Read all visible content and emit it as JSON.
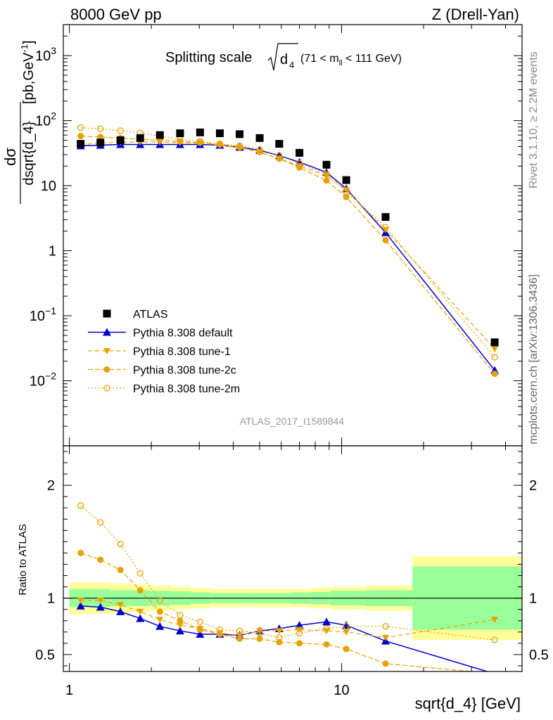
{
  "header": {
    "left": "8000 GeV pp",
    "right": "Z (Drell-Yan)"
  },
  "side_labels": {
    "rivet": "Rivet 3.1.10, ≥ 2.2M events",
    "mcplots": "mcplots.cern.ch [arXiv:1306.3436]"
  },
  "watermark": "ATLAS_2017_I1589844",
  "colors": {
    "atlas": "#000000",
    "default": "#0000cc",
    "tunes": "#e8a100",
    "band_inner": "#99ff99",
    "band_outer": "#ffff99"
  },
  "chart_data": [
    {
      "type": "scatter",
      "panel": "main",
      "title": "Splitting scale",
      "title_symbol": "√d",
      "title_symbol_sub": "4",
      "title_range_prefix": "(71 < m",
      "title_range_sub": "ll",
      "title_range_suffix": " < 111 GeV)",
      "ylabel_top": "dσ",
      "ylabel_bottom": "dsqrt{d_4}",
      "ylabel_unit": "[pb,GeV",
      "ylabel_unit_sup": "-1",
      "ylabel_unit_close": "]",
      "xlabel": "sqrt{d_4} [GeV]",
      "xscale": "log",
      "yscale": "log",
      "xlim": [
        0.95,
        46
      ],
      "ylim": [
        0.001,
        3000
      ],
      "y_ticks": [
        {
          "base": "10",
          "exp": "3",
          "value": 1000
        },
        {
          "base": "10",
          "exp": "2",
          "value": 100
        },
        {
          "base": "10",
          "exp": "",
          "value": 10
        },
        {
          "base": "1",
          "exp": "",
          "value": 1
        },
        {
          "base": "10",
          "exp": "−1",
          "value": 0.1
        },
        {
          "base": "10",
          "exp": "−2",
          "value": 0.01
        }
      ],
      "x_ticks": [
        {
          "label": "1",
          "value": 1
        },
        {
          "label": "10",
          "value": 10
        }
      ],
      "x": [
        1.1,
        1.3,
        1.54,
        1.82,
        2.15,
        2.55,
        3.02,
        3.57,
        4.22,
        5.0,
        5.9,
        7.0,
        8.8,
        10.4,
        14.5,
        36.5
      ],
      "series": [
        {
          "name": "ATLAS",
          "style": "atlas",
          "values": [
            44,
            46,
            50,
            54,
            60,
            64,
            66,
            64,
            62,
            54,
            44,
            32,
            21,
            12.2,
            3.3,
            0.039
          ]
        },
        {
          "name": "Pythia 8.308 default",
          "style": "default",
          "values": [
            41,
            42,
            43,
            43,
            43,
            43,
            43,
            42,
            39,
            35,
            29,
            23,
            16,
            9.0,
            1.9,
            0.0145
          ]
        },
        {
          "name": "Pythia 8.308 tune-1",
          "style": "tune1",
          "values": [
            43,
            45,
            47,
            47,
            47,
            46,
            45,
            42,
            38,
            33,
            26,
            20,
            14.5,
            8.6,
            2.1,
            0.031
          ]
        },
        {
          "name": "Pythia 8.308 tune-2c",
          "style": "tune2c",
          "values": [
            58,
            56,
            54,
            52,
            50,
            48,
            46,
            43,
            39,
            33,
            26,
            19,
            12,
            6.7,
            1.45,
            0.0128
          ]
        },
        {
          "name": "Pythia 8.308 tune-2m",
          "style": "tune2m",
          "values": [
            78,
            75,
            70,
            65,
            58,
            52,
            48,
            44,
            41,
            36,
            29,
            22,
            15,
            8.1,
            2.3,
            0.023
          ]
        }
      ]
    },
    {
      "type": "scatter",
      "panel": "ratio",
      "ylabel": "Ratio to ATLAS",
      "xscale": "log",
      "yscale": "linear",
      "xlim": [
        0.95,
        46
      ],
      "ylim": [
        0.35,
        2.35
      ],
      "y_ticks": [
        {
          "label": "0.5",
          "value": 0.5
        },
        {
          "label": "1",
          "value": 1
        },
        {
          "label": "2",
          "value": 2
        }
      ],
      "x": [
        1.1,
        1.3,
        1.54,
        1.82,
        2.15,
        2.55,
        3.02,
        3.57,
        4.22,
        5.0,
        5.9,
        7.0,
        8.8,
        10.4,
        14.5,
        36.5
      ],
      "bins": [
        1.0,
        1.2,
        1.41,
        1.68,
        1.99,
        2.35,
        2.79,
        3.3,
        3.91,
        4.63,
        5.48,
        6.5,
        7.7,
        9.1,
        12.2,
        18.2,
        46
      ],
      "band_inner": [
        0.08,
        0.08,
        0.07,
        0.07,
        0.065,
        0.06,
        0.05,
        0.045,
        0.045,
        0.045,
        0.045,
        0.05,
        0.055,
        0.065,
        0.07,
        0.28
      ],
      "band_outer": [
        0.14,
        0.14,
        0.13,
        0.12,
        0.11,
        0.1,
        0.09,
        0.08,
        0.08,
        0.08,
        0.08,
        0.08,
        0.09,
        0.1,
        0.11,
        0.37
      ],
      "series": [
        {
          "name": "Pythia 8.308 default",
          "style": "default",
          "values": [
            0.93,
            0.92,
            0.88,
            0.82,
            0.75,
            0.71,
            0.68,
            0.68,
            0.67,
            0.71,
            0.73,
            0.76,
            0.79,
            0.76,
            0.62,
            0.33
          ]
        },
        {
          "name": "Pythia 8.308 tune-1",
          "style": "tune1",
          "values": [
            0.98,
            0.98,
            0.94,
            0.88,
            0.81,
            0.76,
            0.73,
            0.69,
            0.67,
            0.71,
            0.71,
            0.72,
            0.71,
            0.7,
            0.65,
            0.81
          ]
        },
        {
          "name": "Pythia 8.308 tune-2c",
          "style": "tune2c",
          "values": [
            1.4,
            1.34,
            1.25,
            1.07,
            0.88,
            0.8,
            0.72,
            0.68,
            0.64,
            0.64,
            0.61,
            0.6,
            0.59,
            0.55,
            0.42,
            0.33
          ]
        },
        {
          "name": "Pythia 8.308 tune-2m",
          "style": "tune2m",
          "values": [
            1.82,
            1.67,
            1.48,
            1.22,
            0.98,
            0.85,
            0.79,
            0.72,
            0.71,
            0.69,
            0.65,
            0.69,
            0.73,
            0.75,
            0.75,
            0.63
          ]
        }
      ]
    }
  ]
}
